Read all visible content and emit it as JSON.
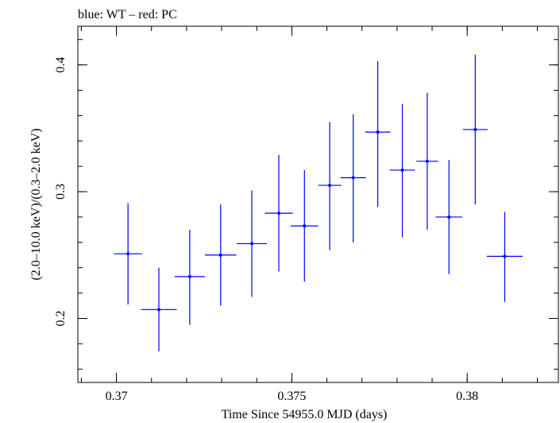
{
  "chart_data": {
    "type": "scatter",
    "title": "blue: WT – red: PC",
    "xlabel": "Time Since 54955.0 MJD (days)",
    "ylabel": "(2.0–10.0 keV)/(0.3–2.0 keV)",
    "xlim": [
      0.3689,
      0.3826
    ],
    "ylim": [
      0.1495,
      0.4305
    ],
    "xticks": [
      0.37,
      0.375,
      0.38
    ],
    "xtick_labels": [
      "0.37",
      "0.375",
      "0.38"
    ],
    "yticks": [
      0.2,
      0.3,
      0.4
    ],
    "ytick_labels": [
      "0.2",
      "0.3",
      "0.4"
    ],
    "grid": false,
    "series_color": "#0000ff",
    "points": [
      {
        "x": 0.37033,
        "xerr": 0.0004,
        "y": 0.251,
        "ylo": 0.211,
        "yhi": 0.291
      },
      {
        "x": 0.37121,
        "xerr": 0.00051,
        "y": 0.207,
        "ylo": 0.174,
        "yhi": 0.24
      },
      {
        "x": 0.37209,
        "xerr": 0.00043,
        "y": 0.233,
        "ylo": 0.195,
        "yhi": 0.27
      },
      {
        "x": 0.37297,
        "xerr": 0.00045,
        "y": 0.25,
        "ylo": 0.21,
        "yhi": 0.29
      },
      {
        "x": 0.37386,
        "xerr": 0.00043,
        "y": 0.259,
        "ylo": 0.217,
        "yhi": 0.301
      },
      {
        "x": 0.37463,
        "xerr": 0.0004,
        "y": 0.283,
        "ylo": 0.237,
        "yhi": 0.329
      },
      {
        "x": 0.37536,
        "xerr": 0.00039,
        "y": 0.273,
        "ylo": 0.229,
        "yhi": 0.317
      },
      {
        "x": 0.37608,
        "xerr": 0.00033,
        "y": 0.305,
        "ylo": 0.254,
        "yhi": 0.355
      },
      {
        "x": 0.37675,
        "xerr": 0.00036,
        "y": 0.311,
        "ylo": 0.26,
        "yhi": 0.361
      },
      {
        "x": 0.37745,
        "xerr": 0.00036,
        "y": 0.347,
        "ylo": 0.288,
        "yhi": 0.403
      },
      {
        "x": 0.37815,
        "xerr": 0.00036,
        "y": 0.317,
        "ylo": 0.264,
        "yhi": 0.369
      },
      {
        "x": 0.37886,
        "xerr": 0.00031,
        "y": 0.324,
        "ylo": 0.27,
        "yhi": 0.378
      },
      {
        "x": 0.37948,
        "xerr": 0.00038,
        "y": 0.28,
        "ylo": 0.235,
        "yhi": 0.325
      },
      {
        "x": 0.38023,
        "xerr": 0.00035,
        "y": 0.349,
        "ylo": 0.29,
        "yhi": 0.408
      },
      {
        "x": 0.38107,
        "xerr": 0.00051,
        "y": 0.249,
        "ylo": 0.213,
        "yhi": 0.284
      }
    ]
  }
}
